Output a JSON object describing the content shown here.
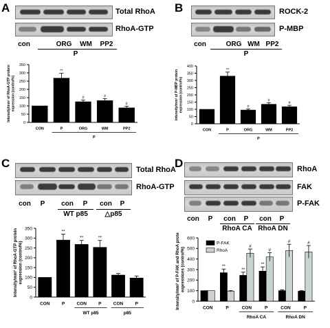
{
  "panels": {
    "A": {
      "label": "A",
      "blots": [
        "Total RhoA",
        "RhoA-GTP"
      ],
      "lanes": [
        "con",
        "ORG",
        "WM",
        "PP2"
      ],
      "group": "P"
    },
    "B": {
      "label": "B",
      "blots": [
        "ROCK-2",
        "P-MBP"
      ],
      "lanes": [
        "con",
        "ORG",
        "WM",
        "PP2"
      ],
      "group": "P"
    },
    "C": {
      "label": "C",
      "blots": [
        "Total RhoA",
        "RhoA-GTP"
      ],
      "lanes": [
        "con",
        "P",
        "con",
        "P",
        "con",
        "P"
      ],
      "groups": [
        "WT p85",
        "△p85"
      ]
    },
    "D": {
      "label": "D",
      "blots": [
        "RhoA",
        "FAK",
        "P-FAK"
      ],
      "lanes": [
        "con",
        "P",
        "con",
        "P",
        "con",
        "P"
      ],
      "groups": [
        "RhoA CA",
        "RhoA DN"
      ]
    }
  },
  "chart_data": [
    {
      "id": "A",
      "type": "bar",
      "ylabel": "Intensity/mm² of RhoA-GTP protein expression (control%)",
      "ylim": [
        0,
        350
      ],
      "yticks": [
        "0",
        "50",
        "100",
        "150",
        "200",
        "250",
        "300",
        "350"
      ],
      "categories": [
        "CON",
        "P",
        "ORG",
        "WM",
        "PP2"
      ],
      "xgroup": "P",
      "values": [
        100,
        268,
        125,
        132,
        88
      ],
      "errors": [
        0,
        30,
        10,
        12,
        10
      ],
      "markers": [
        "",
        "**",
        "#",
        "#",
        "#"
      ],
      "bar_color": "#000000"
    },
    {
      "id": "B",
      "type": "bar",
      "ylabel": "Intensity/mm² of P-MBP protein expression (control%)",
      "ylim": [
        0,
        400
      ],
      "yticks": [
        "0",
        "50",
        "100",
        "150",
        "200",
        "250",
        "300",
        "350",
        "400"
      ],
      "categories": [
        "CON",
        "P",
        "ORG",
        "WM",
        "PP2"
      ],
      "xgroup": "P",
      "values": [
        100,
        330,
        95,
        135,
        118
      ],
      "errors": [
        0,
        28,
        8,
        10,
        10
      ],
      "markers": [
        "",
        "**",
        "#",
        "#",
        "#"
      ],
      "bar_color": "#000000"
    },
    {
      "id": "C",
      "type": "bar",
      "ylabel": "Intensity/mm² of RhoA-GTP protein expression (control%)",
      "ylim": [
        0,
        350
      ],
      "yticks": [
        "0",
        "50",
        "100",
        "150",
        "200",
        "250",
        "300",
        "350"
      ],
      "categories": [
        "CON",
        "P",
        "CON",
        "P",
        "CON",
        "P"
      ],
      "xgroups": [
        "WT p85",
        "p85"
      ],
      "values": [
        100,
        290,
        268,
        253,
        112,
        97
      ],
      "errors": [
        0,
        30,
        20,
        35,
        8,
        10
      ],
      "markers": [
        "",
        "**",
        "**",
        "**",
        "",
        ""
      ],
      "bar_color": "#000000"
    },
    {
      "id": "D",
      "type": "bar",
      "ylabel": "Intensity/mm² of P-FAK and RhoA protein expressions (control%)",
      "ylim": [
        0,
        600
      ],
      "yticks": [
        "0",
        "100",
        "200",
        "300",
        "400",
        "500",
        "600"
      ],
      "categories": [
        "CON",
        "P",
        "CON",
        "P",
        "CON",
        "P"
      ],
      "xgroups": [
        "RhoA CA",
        "RhoA DN"
      ],
      "series": [
        {
          "name": "P-FAK",
          "values": [
            100,
            270,
            245,
            285,
            100,
            95
          ],
          "errors": [
            0,
            35,
            30,
            40,
            8,
            5
          ],
          "markers": [
            "",
            "**",
            "**",
            "**",
            "",
            ""
          ],
          "color": "#000000"
        },
        {
          "name": "RhoA",
          "values": [
            100,
            95,
            455,
            420,
            480,
            468
          ],
          "errors": [
            0,
            5,
            40,
            40,
            60,
            60
          ],
          "markers": [
            "",
            "",
            "#",
            "#",
            "#",
            "#"
          ],
          "color": "#c9d3cf"
        }
      ],
      "legend": "top-left"
    }
  ]
}
